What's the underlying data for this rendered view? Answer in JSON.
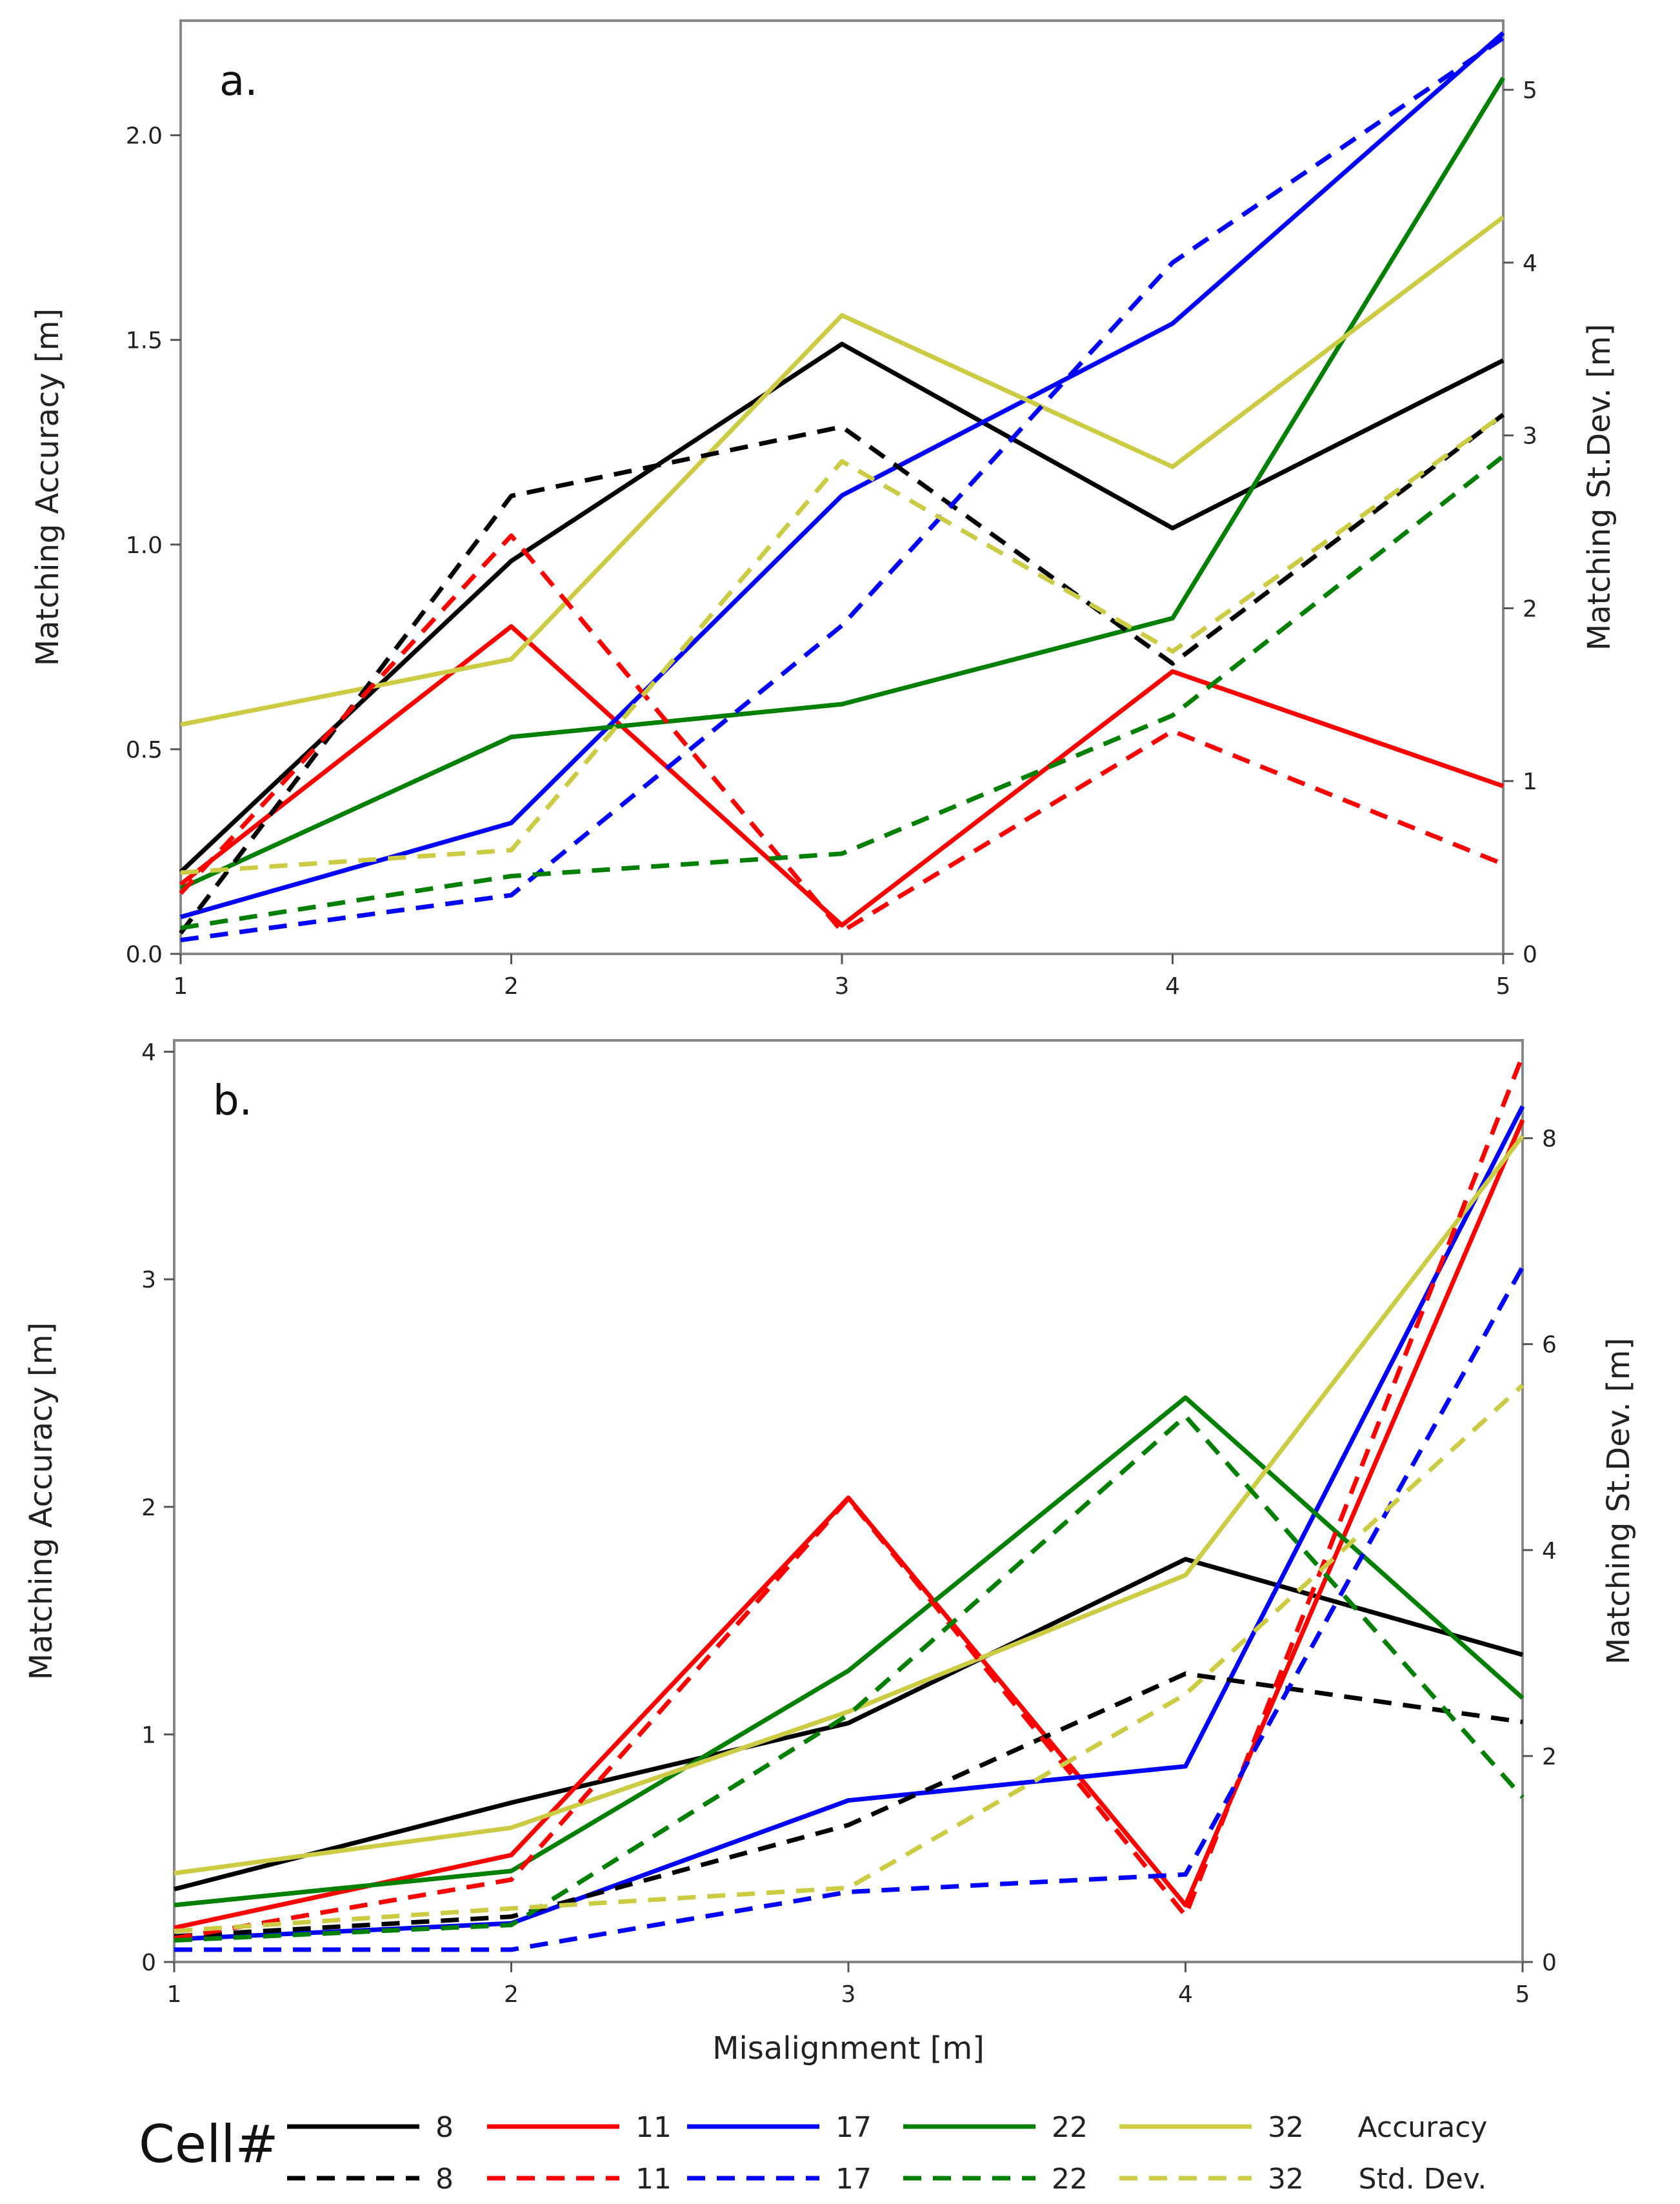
{
  "chart_data": [
    {
      "type": "line",
      "panel_label": "a.",
      "x": [
        1,
        2,
        3,
        4,
        5
      ],
      "xlabel": "",
      "ylabel": "Matching Accuracy [m]",
      "y2label": "Matching St.Dev. [m]",
      "xlim": [
        1,
        5
      ],
      "ylim": [
        0,
        2.28
      ],
      "y2lim": [
        0,
        5.4
      ],
      "xticks": [
        "1",
        "2",
        "3",
        "4",
        "5"
      ],
      "yticks": [
        "0.0",
        "0.5",
        "1.0",
        "1.5",
        "2.0"
      ],
      "y2ticks": [
        "0",
        "1",
        "2",
        "3",
        "4",
        "5"
      ],
      "grid": false,
      "series": [
        {
          "name": "8",
          "kind": "Accuracy",
          "axis": "left",
          "color": "#000000",
          "values": [
            0.2,
            0.96,
            1.49,
            1.04,
            1.45
          ]
        },
        {
          "name": "11",
          "kind": "Accuracy",
          "axis": "left",
          "color": "#ff0000",
          "values": [
            0.17,
            0.8,
            0.07,
            0.69,
            0.41
          ]
        },
        {
          "name": "17",
          "kind": "Accuracy",
          "axis": "left",
          "color": "#0000ff",
          "values": [
            0.09,
            0.32,
            1.12,
            1.54,
            2.25
          ]
        },
        {
          "name": "22",
          "kind": "Accuracy",
          "axis": "left",
          "color": "#008000",
          "values": [
            0.16,
            0.53,
            0.61,
            0.82,
            2.14
          ]
        },
        {
          "name": "32",
          "kind": "Accuracy",
          "axis": "left",
          "color": "#cccc44",
          "values": [
            0.56,
            0.72,
            1.56,
            1.19,
            1.8
          ]
        },
        {
          "name": "8",
          "kind": "Std. Dev.",
          "axis": "right",
          "color": "#000000",
          "values": [
            0.12,
            2.65,
            3.05,
            1.68,
            3.12
          ]
        },
        {
          "name": "11",
          "kind": "Std. Dev.",
          "axis": "right",
          "color": "#ff0000",
          "values": [
            0.35,
            2.42,
            0.13,
            1.29,
            0.52
          ]
        },
        {
          "name": "17",
          "kind": "Std. Dev.",
          "axis": "right",
          "color": "#0000ff",
          "values": [
            0.08,
            0.34,
            1.9,
            4.0,
            5.3
          ]
        },
        {
          "name": "22",
          "kind": "Std. Dev.",
          "axis": "right",
          "color": "#008000",
          "values": [
            0.15,
            0.45,
            0.58,
            1.38,
            2.88
          ]
        },
        {
          "name": "32",
          "kind": "Std. Dev.",
          "axis": "right",
          "color": "#cccc44",
          "values": [
            0.47,
            0.6,
            2.85,
            1.75,
            3.12
          ]
        }
      ]
    },
    {
      "type": "line",
      "panel_label": "b.",
      "x": [
        1,
        2,
        3,
        4,
        5
      ],
      "xlabel": "Misalignment [m]",
      "ylabel": "Matching Accuracy [m]",
      "y2label": "Matching St.Dev. [m]",
      "xlim": [
        1,
        5
      ],
      "ylim": [
        0,
        4.05
      ],
      "y2lim": [
        0,
        8.95
      ],
      "xticks": [
        "1",
        "2",
        "3",
        "4",
        "5"
      ],
      "yticks": [
        "0",
        "1",
        "2",
        "3",
        "4"
      ],
      "y2ticks": [
        "0",
        "2",
        "4",
        "6",
        "8"
      ],
      "grid": false,
      "series": [
        {
          "name": "8",
          "kind": "Accuracy",
          "axis": "left",
          "color": "#000000",
          "values": [
            0.32,
            0.7,
            1.05,
            1.77,
            1.35
          ]
        },
        {
          "name": "11",
          "kind": "Accuracy",
          "axis": "left",
          "color": "#ff0000",
          "values": [
            0.15,
            0.47,
            2.04,
            0.25,
            3.7
          ]
        },
        {
          "name": "17",
          "kind": "Accuracy",
          "axis": "left",
          "color": "#0000ff",
          "values": [
            0.1,
            0.17,
            0.71,
            0.86,
            3.76
          ]
        },
        {
          "name": "22",
          "kind": "Accuracy",
          "axis": "left",
          "color": "#008000",
          "values": [
            0.25,
            0.4,
            1.28,
            2.48,
            1.16
          ]
        },
        {
          "name": "32",
          "kind": "Accuracy",
          "axis": "left",
          "color": "#cccc44",
          "values": [
            0.39,
            0.59,
            1.1,
            1.7,
            3.63
          ]
        },
        {
          "name": "8",
          "kind": "Std. Dev.",
          "axis": "right",
          "color": "#000000",
          "values": [
            0.25,
            0.44,
            1.33,
            2.8,
            2.33
          ]
        },
        {
          "name": "11",
          "kind": "Std. Dev.",
          "axis": "right",
          "color": "#ff0000",
          "values": [
            0.23,
            0.8,
            4.5,
            0.45,
            8.8
          ]
        },
        {
          "name": "17",
          "kind": "Std. Dev.",
          "axis": "right",
          "color": "#0000ff",
          "values": [
            0.12,
            0.12,
            0.68,
            0.85,
            6.75
          ]
        },
        {
          "name": "22",
          "kind": "Std. Dev.",
          "axis": "right",
          "color": "#008000",
          "values": [
            0.21,
            0.36,
            2.4,
            5.3,
            1.6
          ]
        },
        {
          "name": "32",
          "kind": "Std. Dev.",
          "axis": "right",
          "color": "#cccc44",
          "values": [
            0.3,
            0.52,
            0.72,
            2.6,
            5.6
          ]
        }
      ]
    }
  ],
  "legend": {
    "title": "Cell#",
    "row_labels": [
      "Accuracy",
      "Std. Dev."
    ],
    "cells": [
      "8",
      "11",
      "17",
      "22",
      "32"
    ],
    "colors": [
      "#000000",
      "#ff0000",
      "#0000ff",
      "#008000",
      "#cccc44"
    ]
  }
}
